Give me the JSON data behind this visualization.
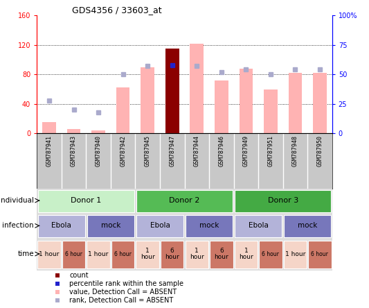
{
  "title": "GDS4356 / 33603_at",
  "samples": [
    "GSM787941",
    "GSM787943",
    "GSM787940",
    "GSM787942",
    "GSM787945",
    "GSM787947",
    "GSM787944",
    "GSM787946",
    "GSM787949",
    "GSM787951",
    "GSM787948",
    "GSM787950"
  ],
  "bar_values": [
    15,
    6,
    4,
    62,
    90,
    115,
    122,
    72,
    88,
    60,
    82,
    82
  ],
  "rank_values": [
    28,
    20,
    18,
    50,
    57,
    58,
    57,
    52,
    54,
    50,
    54,
    54
  ],
  "count_bar_idx": 5,
  "count_value": 115,
  "percentile_rank_idx": 5,
  "ylim_left": [
    0,
    160
  ],
  "ylim_right": [
    0,
    100
  ],
  "yticks_left": [
    0,
    40,
    80,
    120,
    160
  ],
  "yticks_right": [
    0,
    25,
    50,
    75,
    100
  ],
  "ytick_labels_left": [
    "0",
    "40",
    "80",
    "120",
    "160"
  ],
  "ytick_labels_right": [
    "0",
    "25",
    "50",
    "75",
    "100%"
  ],
  "bar_color": "#ffb3b3",
  "count_color": "#8b0000",
  "rank_color": "#aaaacc",
  "percentile_color": "#2222cc",
  "bg_color": "#ffffff",
  "sample_box_color": "#c8c8c8",
  "individual_row": {
    "label": "individual",
    "groups": [
      {
        "text": "Donor 1",
        "start": 0,
        "end": 4,
        "color": "#c8f0c8"
      },
      {
        "text": "Donor 2",
        "start": 4,
        "end": 8,
        "color": "#55bb55"
      },
      {
        "text": "Donor 3",
        "start": 8,
        "end": 12,
        "color": "#44aa44"
      }
    ]
  },
  "infection_row": {
    "label": "infection",
    "groups": [
      {
        "text": "Ebola",
        "start": 0,
        "end": 2,
        "color": "#b3b3d9"
      },
      {
        "text": "mock",
        "start": 2,
        "end": 4,
        "color": "#7777bb"
      },
      {
        "text": "Ebola",
        "start": 4,
        "end": 6,
        "color": "#b3b3d9"
      },
      {
        "text": "mock",
        "start": 6,
        "end": 8,
        "color": "#7777bb"
      },
      {
        "text": "Ebola",
        "start": 8,
        "end": 10,
        "color": "#b3b3d9"
      },
      {
        "text": "mock",
        "start": 10,
        "end": 12,
        "color": "#7777bb"
      }
    ]
  },
  "time_row": {
    "label": "time",
    "groups": [
      {
        "text": "1 hour",
        "start": 0,
        "end": 1,
        "color": "#f5d5c8",
        "small": false
      },
      {
        "text": "6 hour",
        "start": 1,
        "end": 2,
        "color": "#cc7766",
        "small": true
      },
      {
        "text": "1 hour",
        "start": 2,
        "end": 3,
        "color": "#f5d5c8",
        "small": false
      },
      {
        "text": "6 hour",
        "start": 3,
        "end": 4,
        "color": "#cc7766",
        "small": true
      },
      {
        "text": "1\nhour",
        "start": 4,
        "end": 5,
        "color": "#f5d5c8",
        "small": false
      },
      {
        "text": "6\nhour",
        "start": 5,
        "end": 6,
        "color": "#cc7766",
        "small": false
      },
      {
        "text": "1\nhour",
        "start": 6,
        "end": 7,
        "color": "#f5d5c8",
        "small": false
      },
      {
        "text": "6\nhour",
        "start": 7,
        "end": 8,
        "color": "#cc7766",
        "small": false
      },
      {
        "text": "1\nhour",
        "start": 8,
        "end": 9,
        "color": "#f5d5c8",
        "small": false
      },
      {
        "text": "6 hour",
        "start": 9,
        "end": 10,
        "color": "#cc7766",
        "small": true
      },
      {
        "text": "1 hour",
        "start": 10,
        "end": 11,
        "color": "#f5d5c8",
        "small": false
      },
      {
        "text": "6 hour",
        "start": 11,
        "end": 12,
        "color": "#cc7766",
        "small": true
      }
    ]
  },
  "legend_items": [
    {
      "label": "count",
      "color": "#8b0000",
      "marker": "s"
    },
    {
      "label": "percentile rank within the sample",
      "color": "#2222cc",
      "marker": "s"
    },
    {
      "label": "value, Detection Call = ABSENT",
      "color": "#ffb3b3",
      "marker": "s"
    },
    {
      "label": "rank, Detection Call = ABSENT",
      "color": "#aaaacc",
      "marker": "s"
    }
  ]
}
